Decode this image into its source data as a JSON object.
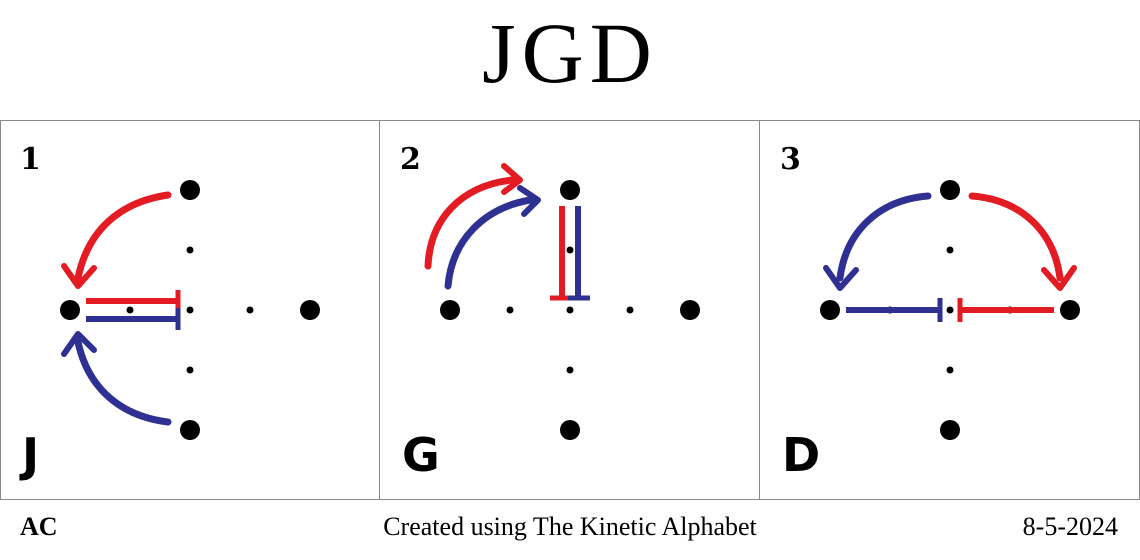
{
  "title": "JGD",
  "colors": {
    "red": "#e31b23",
    "blue": "#2e3192",
    "dot": "#000000"
  },
  "panels": [
    {
      "number": "1",
      "letter": "J"
    },
    {
      "number": "2",
      "letter": "G"
    },
    {
      "number": "3",
      "letter": "D"
    }
  ],
  "footer": {
    "author": "AC",
    "credit": "Created using The Kinetic Alphabet",
    "date": "8-5-2024"
  }
}
